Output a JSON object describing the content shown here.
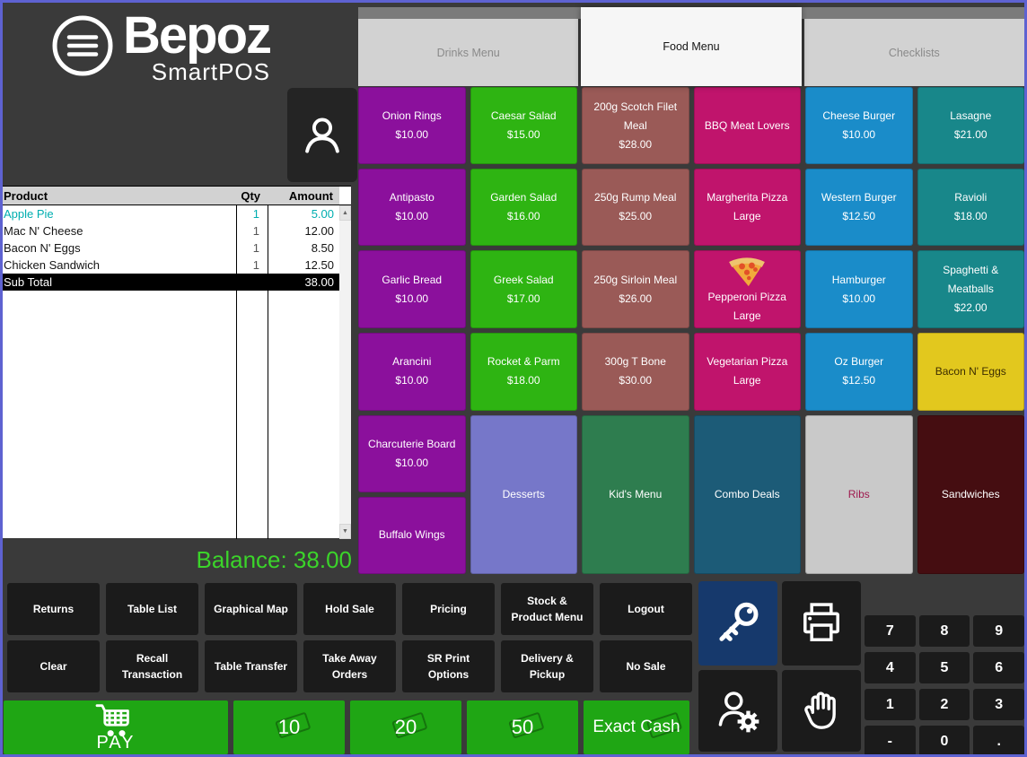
{
  "colors": {
    "window_border": "#5E62D1",
    "background": "#3A3A3A",
    "dark_button": "#1B1B1B",
    "key_button": "#16396C",
    "green": "#1FA614",
    "balance_green": "#3BD42A",
    "selected_item": "#00AEB0",
    "tab_strip": "#7B7B7B",
    "tab_inactive": "#D2D2D2",
    "tab_active": "#F6F6F6"
  },
  "brand": {
    "name": "Bepoz",
    "subtitle": "SmartPOS"
  },
  "icons": {
    "scroll_up": "▲",
    "scroll_down": "▼"
  },
  "tabs": [
    {
      "label": "Drinks Menu",
      "active": false
    },
    {
      "label": "Food Menu",
      "active": true
    },
    {
      "label": "Checklists",
      "active": false
    }
  ],
  "order_panel": {
    "columns": {
      "product": "Product",
      "qty": "Qty",
      "amount": "Amount"
    },
    "items": [
      {
        "product": "Apple Pie",
        "qty": "1",
        "amount": "5.00",
        "selected": true
      },
      {
        "product": "Mac N' Cheese",
        "qty": "1",
        "amount": "12.00",
        "selected": false
      },
      {
        "product": "Bacon N' Eggs",
        "qty": "1",
        "amount": "8.50",
        "selected": false
      },
      {
        "product": "Chicken Sandwich",
        "qty": "1",
        "amount": "12.50",
        "selected": false
      }
    ],
    "subtotal": {
      "label": "Sub Total",
      "amount": "38.00"
    },
    "balance": "Balance: 38.00"
  },
  "menu_grid": {
    "palette": {
      "purple": "#8B109C",
      "green": "#2EB412",
      "brown": "#9A5A57",
      "magenta": "#C0146C",
      "blue": "#1A8CC9",
      "teal": "#18878A",
      "yellow": "#E2C81E",
      "lavender": "#7677C9",
      "forest": "#2E7D4F",
      "steel": "#1C5B77",
      "silver": "#C9C9C9",
      "maroon": "#450D11"
    },
    "tiles": [
      {
        "name": "Onion Rings",
        "price": "$10.00",
        "color": "purple",
        "col": 1,
        "row": 1
      },
      {
        "name": "Caesar Salad",
        "price": "$15.00",
        "color": "green",
        "col": 2,
        "row": 1
      },
      {
        "name": "200g Scotch Filet Meal",
        "price": "$28.00",
        "color": "brown",
        "col": 3,
        "row": 1
      },
      {
        "name": "BBQ Meat Lovers",
        "color": "magenta",
        "col": 4,
        "row": 1
      },
      {
        "name": "Cheese Burger",
        "price": "$10.00",
        "color": "blue",
        "col": 5,
        "row": 1
      },
      {
        "name": "Lasagne",
        "price": "$21.00",
        "color": "teal",
        "col": 6,
        "row": 1
      },
      {
        "name": "Antipasto",
        "price": "$10.00",
        "color": "purple",
        "col": 1,
        "row": 2
      },
      {
        "name": "Garden Salad",
        "price": "$16.00",
        "color": "green",
        "col": 2,
        "row": 2
      },
      {
        "name": "250g Rump Meal",
        "price": "$25.00",
        "color": "brown",
        "col": 3,
        "row": 2
      },
      {
        "name": "Margherita Pizza Large",
        "color": "magenta",
        "col": 4,
        "row": 2
      },
      {
        "name": "Western Burger",
        "price": "$12.50",
        "color": "blue",
        "col": 5,
        "row": 2
      },
      {
        "name": "Ravioli",
        "price": "$18.00",
        "color": "teal",
        "col": 6,
        "row": 2
      },
      {
        "name": "Garlic Bread",
        "price": "$10.00",
        "color": "purple",
        "col": 1,
        "row": 3
      },
      {
        "name": "Greek Salad",
        "price": "$17.00",
        "color": "green",
        "col": 2,
        "row": 3
      },
      {
        "name": "250g Sirloin Meal",
        "price": "$26.00",
        "color": "brown",
        "col": 3,
        "row": 3
      },
      {
        "name": "Pepperoni Pizza Large",
        "color": "magenta",
        "col": 4,
        "row": 3,
        "icon": "pizza"
      },
      {
        "name": "Hamburger",
        "price": "$10.00",
        "color": "blue",
        "col": 5,
        "row": 3
      },
      {
        "name": "Spaghetti & Meatballs",
        "price": "$22.00",
        "color": "teal",
        "col": 6,
        "row": 3
      },
      {
        "name": "Arancini",
        "price": "$10.00",
        "color": "purple",
        "col": 1,
        "row": 4
      },
      {
        "name": "Rocket & Parm",
        "price": "$18.00",
        "color": "green",
        "col": 2,
        "row": 4
      },
      {
        "name": "300g T Bone",
        "price": "$30.00",
        "color": "brown",
        "col": 3,
        "row": 4
      },
      {
        "name": "Vegetarian Pizza Large",
        "color": "magenta",
        "col": 4,
        "row": 4
      },
      {
        "name": "Oz Burger",
        "price": "$12.50",
        "color": "blue",
        "col": 5,
        "row": 4
      },
      {
        "name": "Bacon N' Eggs",
        "color": "yellow",
        "fg": "#3D2E00",
        "col": 6,
        "row": 4
      },
      {
        "name": "Charcuterie Board",
        "price": "$10.00",
        "color": "purple",
        "col": 1,
        "row": 5
      },
      {
        "name": "Buffalo Wings",
        "color": "purple",
        "col": 1,
        "row": 6
      },
      {
        "name": "Desserts",
        "color": "lavender",
        "col": 2,
        "row": 5,
        "rowspan": 2
      },
      {
        "name": "Kid's Menu",
        "color": "forest",
        "col": 3,
        "row": 5,
        "rowspan": 2
      },
      {
        "name": "Combo Deals",
        "color": "steel",
        "col": 4,
        "row": 5,
        "rowspan": 2
      },
      {
        "name": "Ribs",
        "color": "silver",
        "fg": "#9E1A4E",
        "col": 5,
        "row": 5,
        "rowspan": 2
      },
      {
        "name": "Sandwiches",
        "color": "maroon",
        "col": 6,
        "row": 5,
        "rowspan": 2
      }
    ]
  },
  "function_buttons": [
    "Returns",
    "Table List",
    "Graphical Map",
    "Hold Sale",
    "Pricing",
    "Stock & Product Menu",
    "Logout",
    "Clear",
    "Recall Transaction",
    "Table Transfer",
    "Take Away Orders",
    "SR Print Options",
    "Delivery & Pickup",
    "No Sale"
  ],
  "payments": {
    "pay_label": "PAY",
    "denominations": [
      "10",
      "20",
      "50"
    ],
    "exact_cash_label": "Exact Cash"
  },
  "numpad_keys": [
    "7",
    "8",
    "9",
    "4",
    "5",
    "6",
    "1",
    "2",
    "3",
    "-",
    "0",
    "."
  ],
  "side_buttons": [
    {
      "name": "key-icon",
      "active": true
    },
    {
      "name": "printer-icon",
      "active": false
    },
    {
      "name": "user-settings-icon",
      "active": false
    },
    {
      "name": "stop-hand-icon",
      "active": false
    }
  ]
}
